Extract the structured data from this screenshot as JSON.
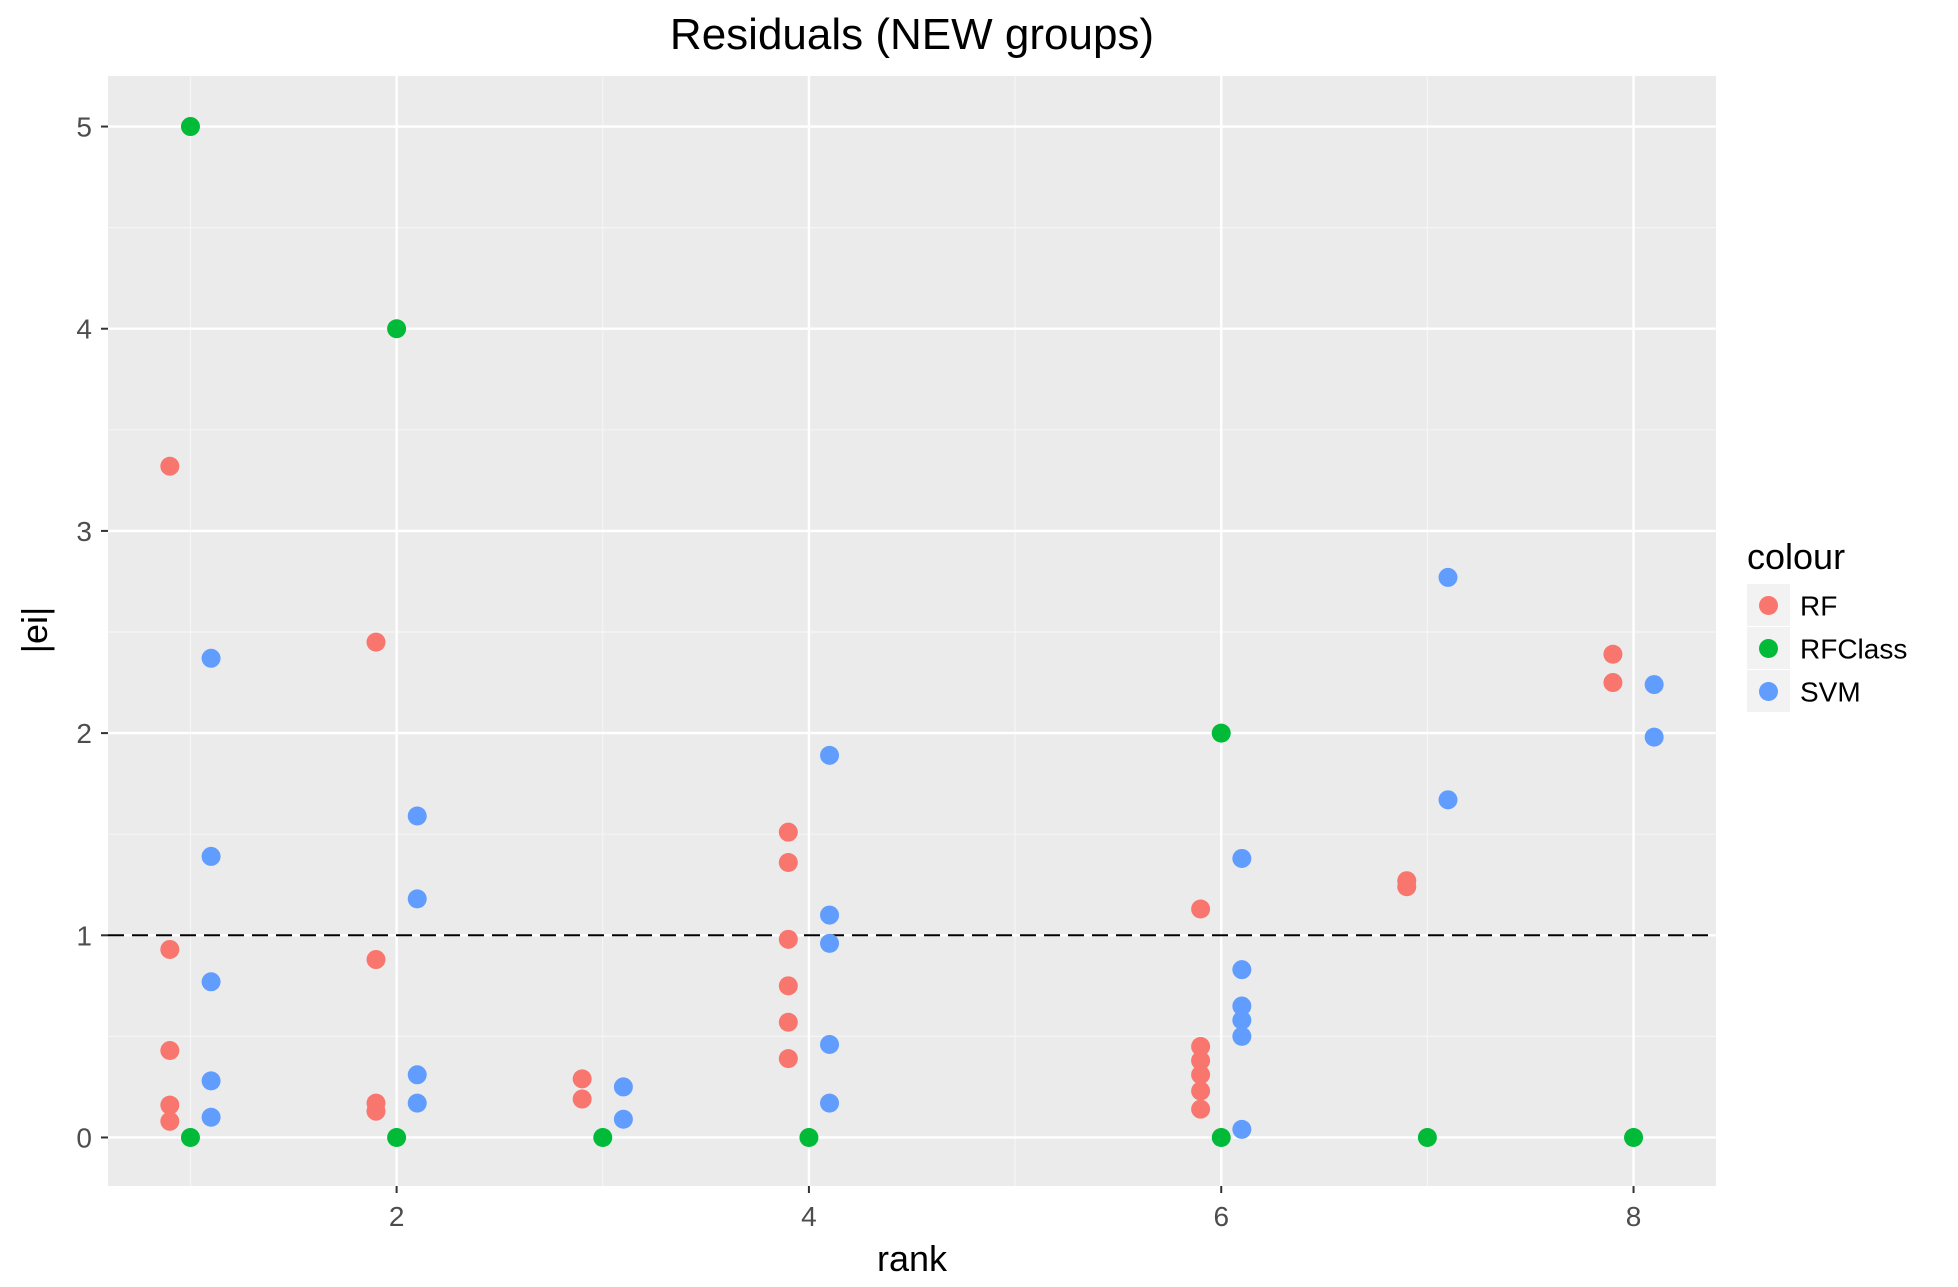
{
  "chart_data": {
    "type": "scatter",
    "title": "Residuals (NEW groups)",
    "xlabel": "rank",
    "ylabel": "|ei|",
    "xlim": [
      0.6,
      8.4
    ],
    "ylim": [
      -0.24,
      5.25
    ],
    "xticks": [
      2,
      4,
      6,
      8
    ],
    "xtick_labels": [
      "2",
      "4",
      "6",
      "8"
    ],
    "yticks": [
      0,
      1,
      2,
      3,
      4,
      5
    ],
    "ytick_labels": [
      "0",
      "1",
      "2",
      "3",
      "4",
      "5"
    ],
    "grid": true,
    "reference_line": {
      "y": 1,
      "style": "dashed"
    },
    "legend": {
      "title": "colour",
      "position": "right"
    },
    "series": [
      {
        "name": "RF",
        "color": "#F8766D",
        "points": [
          [
            0.9,
            3.32
          ],
          [
            0.9,
            0.93
          ],
          [
            0.9,
            0.43
          ],
          [
            0.9,
            0.16
          ],
          [
            0.9,
            0.08
          ],
          [
            1.9,
            2.45
          ],
          [
            1.9,
            0.88
          ],
          [
            1.9,
            0.17
          ],
          [
            1.9,
            0.13
          ],
          [
            2.9,
            0.29
          ],
          [
            2.9,
            0.19
          ],
          [
            3.9,
            1.51
          ],
          [
            3.9,
            1.36
          ],
          [
            3.9,
            0.98
          ],
          [
            3.9,
            0.75
          ],
          [
            3.9,
            0.57
          ],
          [
            3.9,
            0.39
          ],
          [
            5.9,
            1.13
          ],
          [
            5.9,
            0.45
          ],
          [
            5.9,
            0.38
          ],
          [
            5.9,
            0.31
          ],
          [
            5.9,
            0.23
          ],
          [
            5.9,
            0.14
          ],
          [
            6.9,
            1.27
          ],
          [
            6.9,
            1.24
          ],
          [
            7.9,
            2.39
          ],
          [
            7.9,
            2.25
          ]
        ]
      },
      {
        "name": "RFClass",
        "color": "#00BA38",
        "points": [
          [
            1.0,
            5.0
          ],
          [
            1.0,
            0.0
          ],
          [
            2.0,
            4.0
          ],
          [
            2.0,
            0.0
          ],
          [
            3.0,
            0.0
          ],
          [
            4.0,
            0.0
          ],
          [
            6.0,
            2.0
          ],
          [
            6.0,
            0.0
          ],
          [
            7.0,
            0.0
          ],
          [
            8.0,
            0.0
          ]
        ]
      },
      {
        "name": "SVM",
        "color": "#619CFF",
        "points": [
          [
            1.1,
            2.37
          ],
          [
            1.1,
            1.39
          ],
          [
            1.1,
            0.77
          ],
          [
            1.1,
            0.28
          ],
          [
            1.1,
            0.1
          ],
          [
            2.1,
            1.59
          ],
          [
            2.1,
            1.18
          ],
          [
            2.1,
            0.31
          ],
          [
            2.1,
            0.17
          ],
          [
            3.1,
            0.25
          ],
          [
            3.1,
            0.09
          ],
          [
            4.1,
            1.89
          ],
          [
            4.1,
            1.1
          ],
          [
            4.1,
            0.96
          ],
          [
            4.1,
            0.46
          ],
          [
            4.1,
            0.17
          ],
          [
            6.1,
            1.38
          ],
          [
            6.1,
            0.83
          ],
          [
            6.1,
            0.65
          ],
          [
            6.1,
            0.58
          ],
          [
            6.1,
            0.5
          ],
          [
            6.1,
            0.04
          ],
          [
            7.1,
            2.77
          ],
          [
            7.1,
            1.67
          ],
          [
            8.1,
            2.24
          ],
          [
            8.1,
            1.98
          ]
        ]
      }
    ]
  }
}
